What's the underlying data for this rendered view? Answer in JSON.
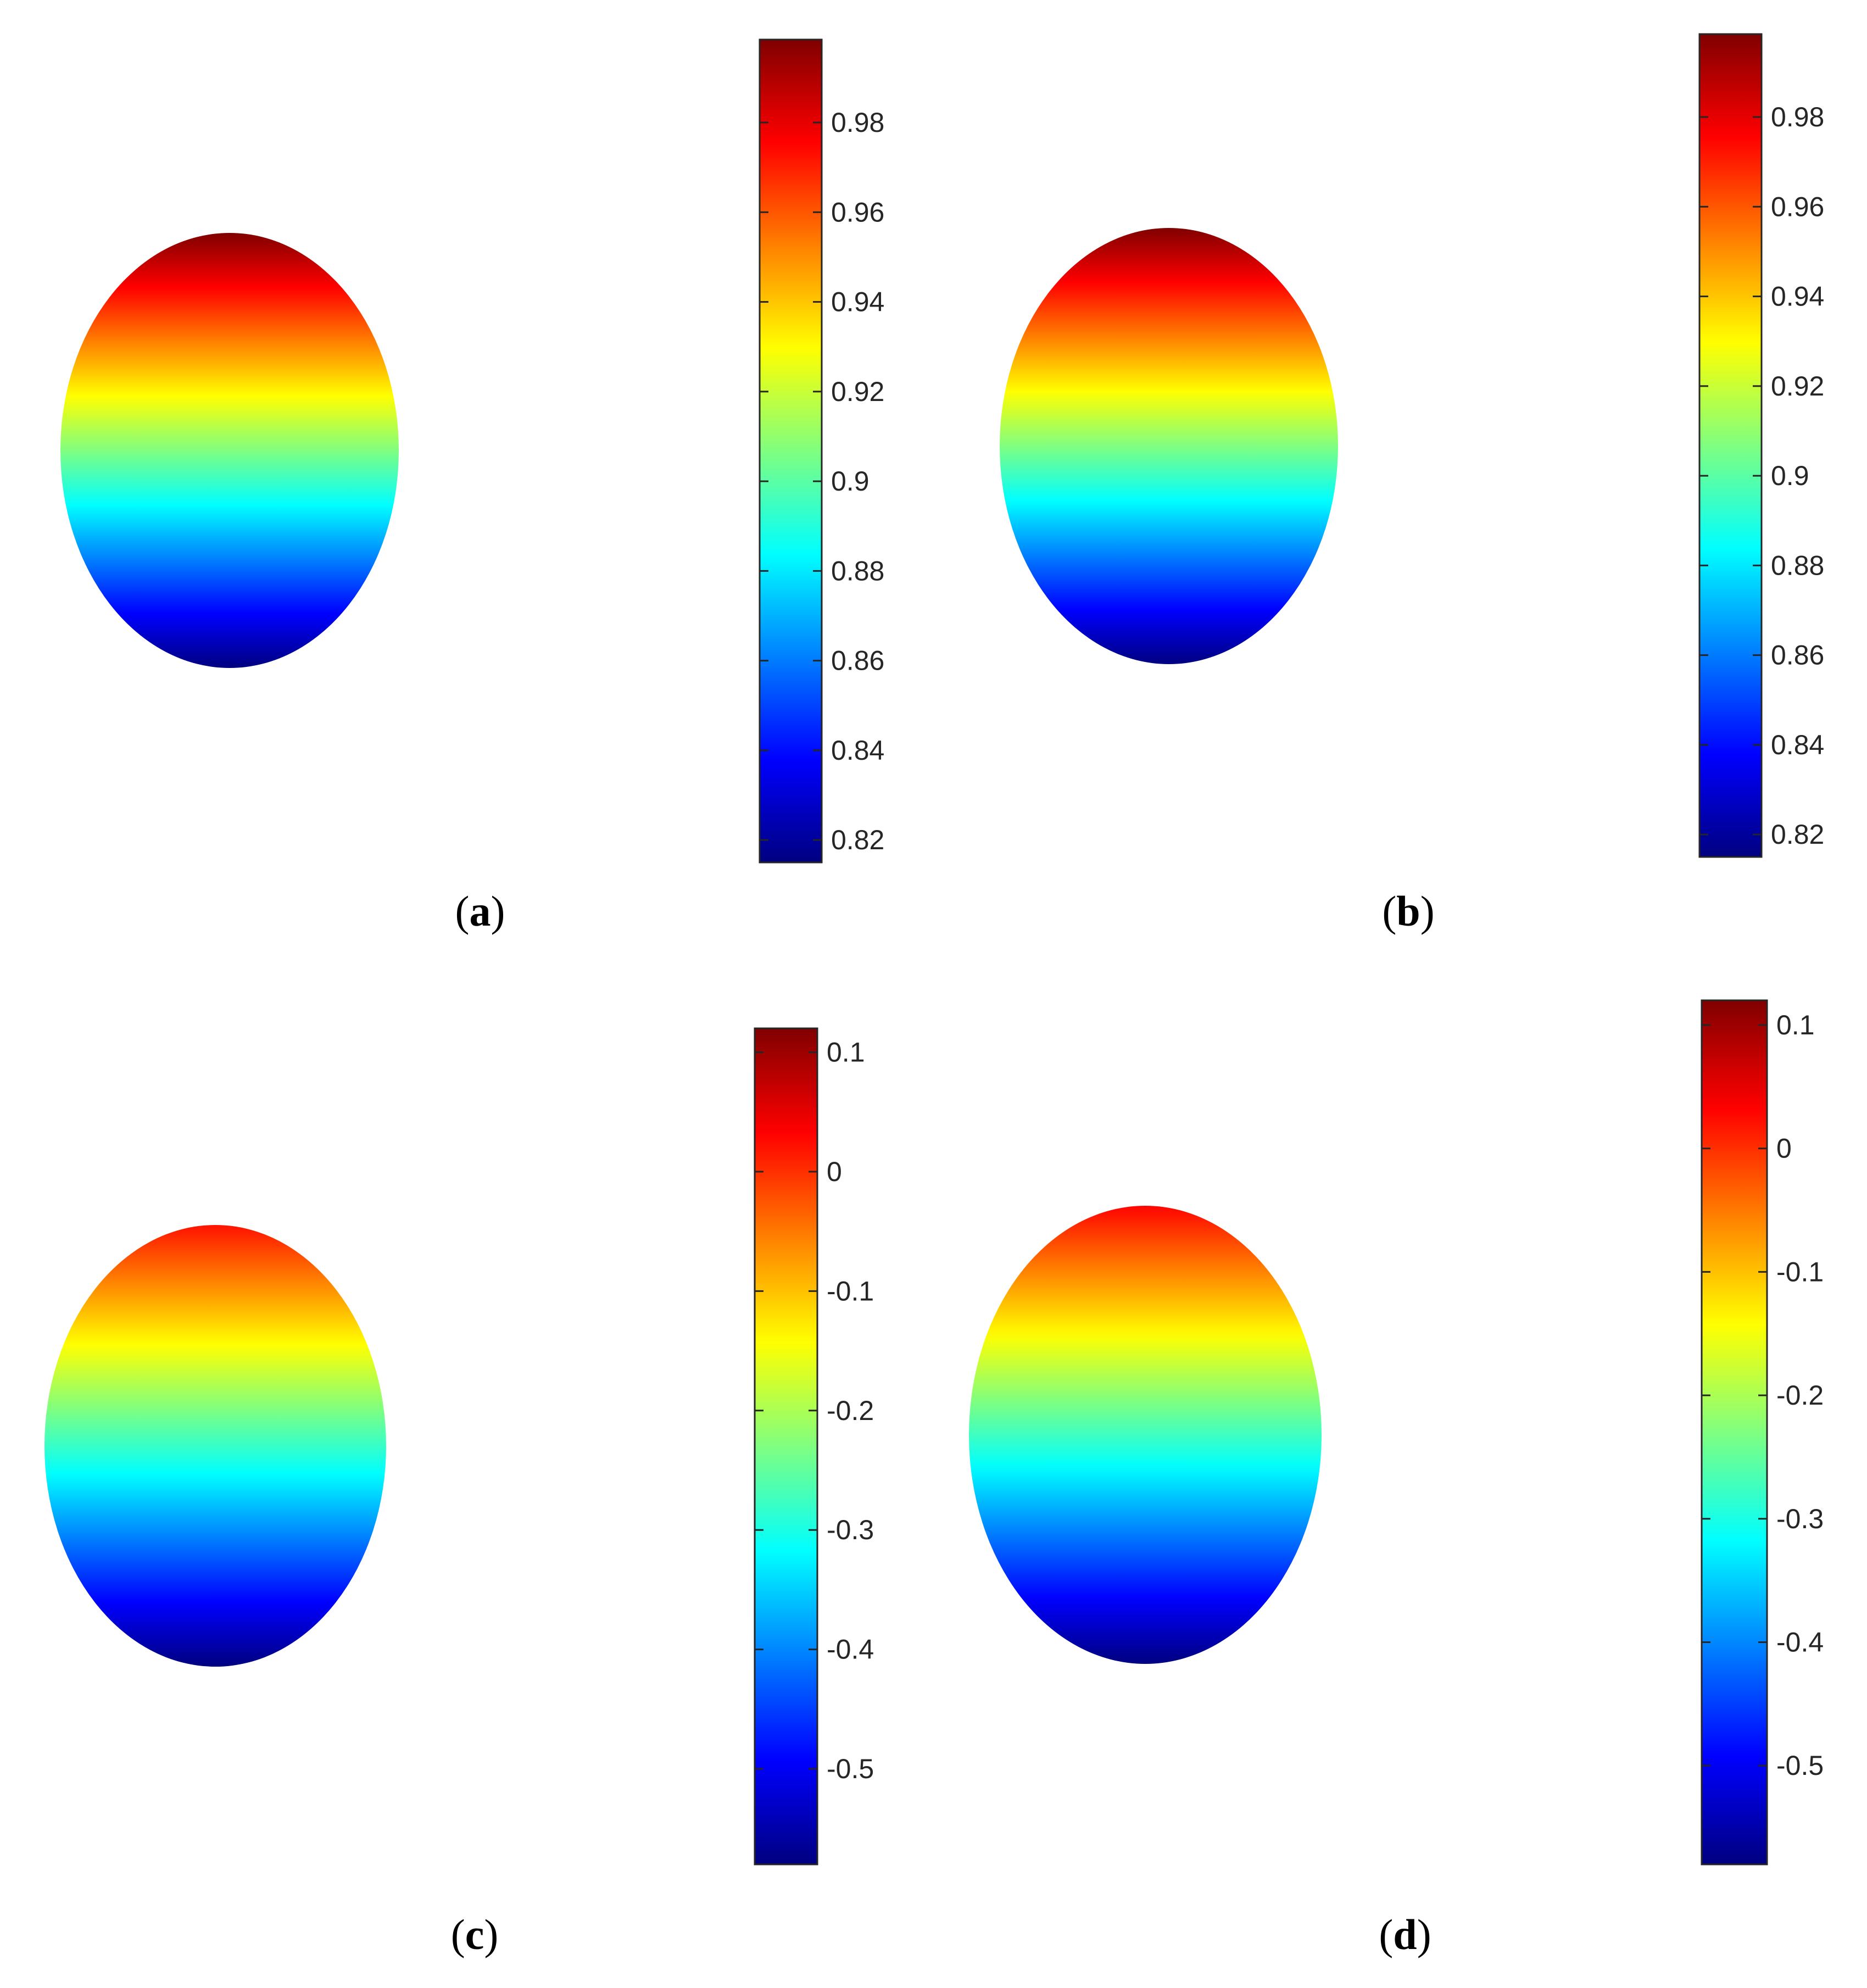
{
  "chart_data": [
    {
      "type": "heatmap",
      "panel_label": "a",
      "colormap": "jet",
      "colorbar": {
        "min": 0.815,
        "max": 0.9985,
        "ticks": [
          0.82,
          0.84,
          0.86,
          0.88,
          0.9,
          0.92,
          0.94,
          0.96,
          0.98
        ],
        "tick_labels": [
          "0.82",
          "0.84",
          "0.86",
          "0.88",
          "0.9",
          "0.92",
          "0.94",
          "0.96",
          "0.98"
        ]
      },
      "surface": {
        "shape": "ellipse",
        "value_top": 0.9985,
        "value_bottom": 0.815
      }
    },
    {
      "type": "heatmap",
      "panel_label": "b",
      "colormap": "jet",
      "colorbar": {
        "min": 0.815,
        "max": 0.9985,
        "ticks": [
          0.82,
          0.84,
          0.86,
          0.88,
          0.9,
          0.92,
          0.94,
          0.96,
          0.98
        ],
        "tick_labels": [
          "0.82",
          "0.84",
          "0.86",
          "0.88",
          "0.9",
          "0.92",
          "0.94",
          "0.96",
          "0.98"
        ]
      },
      "surface": {
        "shape": "ellipse",
        "value_top": 0.9985,
        "value_bottom": 0.815
      }
    },
    {
      "type": "heatmap",
      "panel_label": "c",
      "colormap": "jet",
      "colorbar": {
        "min": -0.58,
        "max": 0.12,
        "ticks": [
          -0.5,
          -0.4,
          -0.3,
          -0.2,
          -0.1,
          0,
          0.1
        ],
        "tick_labels": [
          "-0.5",
          "-0.4",
          "-0.3",
          "-0.2",
          "-0.1",
          "0",
          "0.1"
        ]
      },
      "surface": {
        "shape": "ellipse",
        "value_top": 0.02,
        "value_bottom": -0.58
      }
    },
    {
      "type": "heatmap",
      "panel_label": "d",
      "colormap": "jet",
      "colorbar": {
        "min": -0.58,
        "max": 0.12,
        "ticks": [
          -0.5,
          -0.4,
          -0.3,
          -0.2,
          -0.1,
          0,
          0.1
        ],
        "tick_labels": [
          "-0.5",
          "-0.4",
          "-0.3",
          "-0.2",
          "-0.1",
          "0",
          "0.1"
        ]
      },
      "surface": {
        "shape": "ellipse",
        "value_top": 0.03,
        "value_bottom": -0.58
      }
    }
  ]
}
